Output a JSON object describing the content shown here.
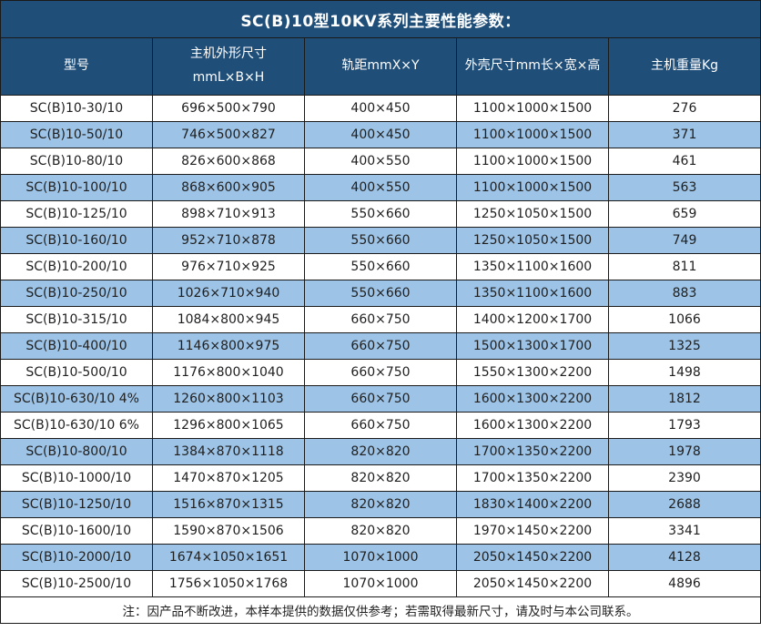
{
  "title": "SC(B)10型10KV系列主要性能参数：",
  "table": {
    "headers": [
      {
        "lines": [
          "型号"
        ]
      },
      {
        "lines": [
          "主机外形尺寸",
          "mmL×B×H"
        ]
      },
      {
        "lines": [
          "轨距mmX×Y"
        ]
      },
      {
        "lines": [
          "外壳尺寸mm长×宽×高"
        ]
      },
      {
        "lines": [
          "主机重量Kg"
        ]
      }
    ],
    "rows": [
      [
        "SC(B)10-30/10",
        "696×500×790",
        "400×450",
        "1100×1000×1500",
        "276"
      ],
      [
        "SC(B)10-50/10",
        "746×500×827",
        "400×450",
        "1100×1000×1500",
        "371"
      ],
      [
        "SC(B)10-80/10",
        "826×600×868",
        "400×550",
        "1100×1000×1500",
        "461"
      ],
      [
        "SC(B)10-100/10",
        "868×600×905",
        "400×550",
        "1100×1000×1500",
        "563"
      ],
      [
        "SC(B)10-125/10",
        "898×710×913",
        "550×660",
        "1250×1050×1500",
        "659"
      ],
      [
        "SC(B)10-160/10",
        "952×710×878",
        "550×660",
        "1250×1050×1500",
        "749"
      ],
      [
        "SC(B)10-200/10",
        "976×710×925",
        "550×660",
        "1350×1100×1600",
        "811"
      ],
      [
        "SC(B)10-250/10",
        "1026×710×940",
        "550×660",
        "1350×1100×1600",
        "883"
      ],
      [
        "SC(B)10-315/10",
        "1084×800×945",
        "660×750",
        "1400×1200×1700",
        "1066"
      ],
      [
        "SC(B)10-400/10",
        "1146×800×975",
        "660×750",
        "1500×1300×1700",
        "1325"
      ],
      [
        "SC(B)10-500/10",
        "1176×800×1040",
        "660×750",
        "1550×1300×2200",
        "1498"
      ],
      [
        "SC(B)10-630/10 4%",
        "1260×800×1103",
        "660×750",
        "1600×1300×2200",
        "1812"
      ],
      [
        "SC(B)10-630/10 6%",
        "1296×800×1065",
        "660×750",
        "1600×1300×2200",
        "1793"
      ],
      [
        "SC(B)10-800/10",
        "1384×870×1118",
        "820×820",
        "1700×1350×2200",
        "1978"
      ],
      [
        "SC(B)10-1000/10",
        "1470×870×1205",
        "820×820",
        "1700×1350×2200",
        "2390"
      ],
      [
        "SC(B)10-1250/10",
        "1516×870×1315",
        "820×820",
        "1830×1400×2200",
        "2688"
      ],
      [
        "SC(B)10-1600/10",
        "1590×870×1506",
        "820×820",
        "1970×1450×2200",
        "3341"
      ],
      [
        "SC(B)10-2000/10",
        "1674×1050×1651",
        "1070×1000",
        "2050×1450×2200",
        "4128"
      ],
      [
        "SC(B)10-2500/10",
        "1756×1050×1768",
        "1070×1000",
        "2050×1450×2200",
        "4896"
      ]
    ]
  },
  "footnote": "注：因产品不断改进，本样本提供的数据仅供参考；若需取得最新尺寸，请及时与本公司联系。",
  "colors": {
    "header_bg": "#1F4E79",
    "header_text": "#FFFFFF",
    "alt_row_bg": "#9DC3E6",
    "row_bg": "#FFFFFF",
    "border": "#1A1A1A",
    "body_text": "#1F1F1F"
  }
}
